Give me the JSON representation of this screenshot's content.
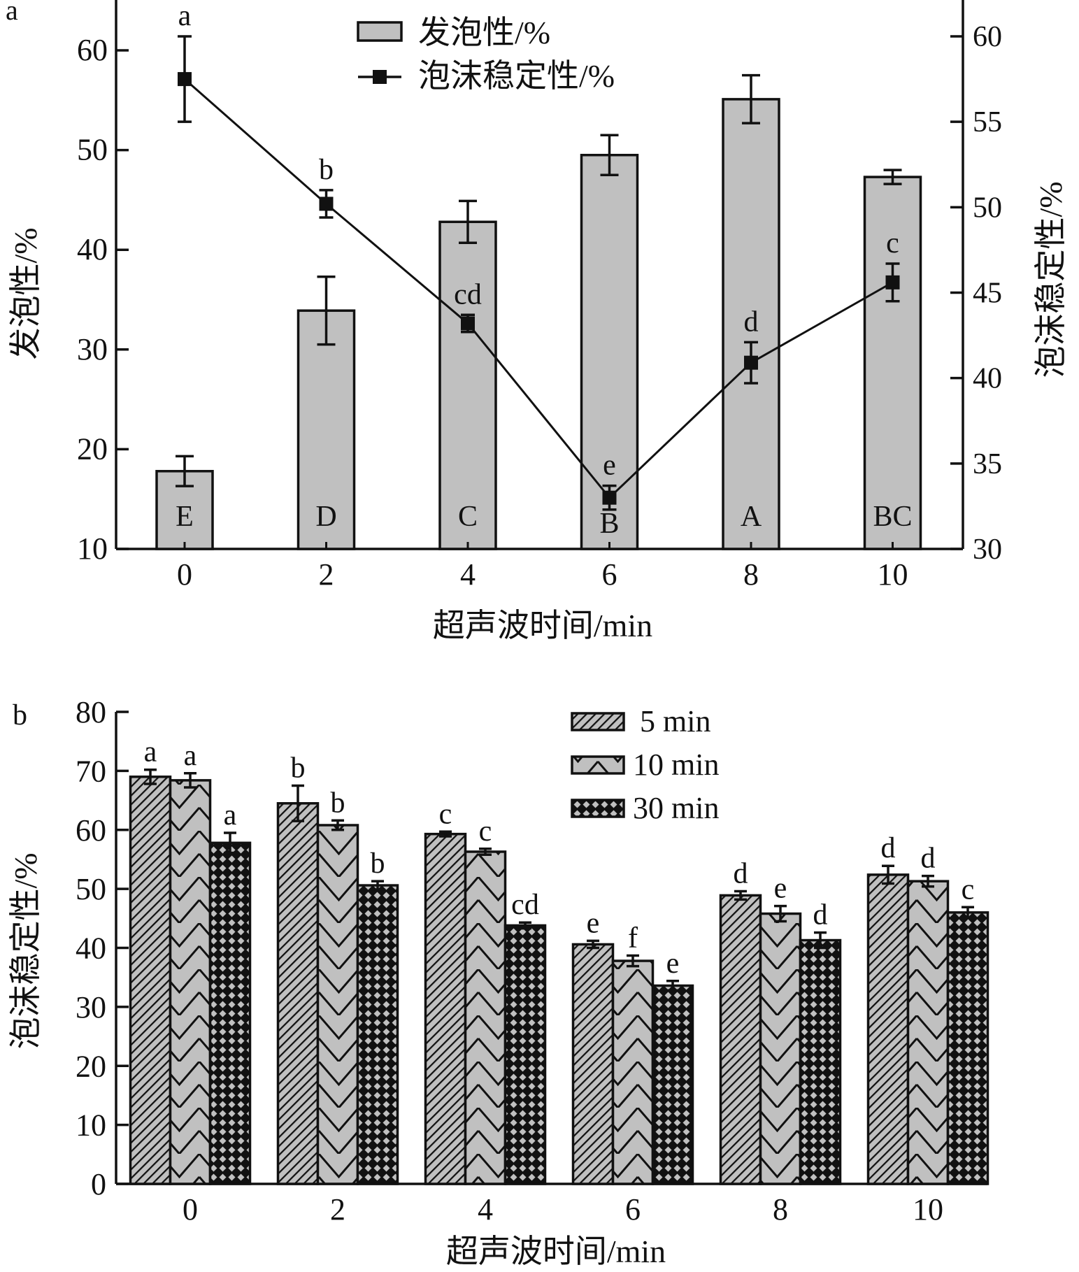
{
  "chart_data": [
    {
      "panel": "a",
      "type": "bar",
      "title": "",
      "xlabel": "超声波时间/min",
      "ylabel": "发泡性/%",
      "y2label": "泡沫稳定性/%",
      "categories": [
        "0",
        "2",
        "4",
        "6",
        "8",
        "10"
      ],
      "ylim": [
        10,
        65
      ],
      "yticks": [
        10,
        20,
        30,
        40,
        50,
        60
      ],
      "y2lim": [
        30,
        62
      ],
      "y2ticks": [
        30,
        35,
        40,
        45,
        50,
        55,
        60
      ],
      "legend_position": "top-center",
      "grid": false,
      "series": [
        {
          "name": "发泡性/%",
          "kind": "bar",
          "axis": "left",
          "color": "#c0c0c0",
          "values": [
            17.8,
            33.9,
            42.8,
            49.5,
            55.1,
            47.3
          ],
          "errors": [
            1.5,
            3.4,
            2.1,
            2.0,
            2.4,
            0.7
          ],
          "significance": [
            "E",
            "D",
            "C",
            "B",
            "A",
            "BC"
          ]
        },
        {
          "name": "泡沫稳定性/%",
          "kind": "line",
          "axis": "right",
          "color": "#000000",
          "marker": "square",
          "values": [
            57.5,
            50.2,
            43.2,
            33.0,
            40.9,
            45.6
          ],
          "errors": [
            2.5,
            0.8,
            0.5,
            0.7,
            1.2,
            1.1
          ],
          "significance": [
            "a",
            "b",
            "cd",
            "e",
            "d",
            "c"
          ]
        }
      ]
    },
    {
      "panel": "b",
      "type": "bar",
      "title": "",
      "xlabel": "超声波时间/min",
      "ylabel": "泡沫稳定性/%",
      "categories": [
        "0",
        "2",
        "4",
        "6",
        "8",
        "10"
      ],
      "ylim": [
        0,
        80
      ],
      "yticks": [
        0,
        10,
        20,
        30,
        40,
        50,
        60,
        70,
        80
      ],
      "legend_position": "top-center",
      "grid": false,
      "series": [
        {
          "name": "5 min",
          "pattern": "diagonal-hatch",
          "values": [
            69.0,
            64.5,
            59.3,
            40.6,
            48.9,
            52.4
          ],
          "errors": [
            1.2,
            3.0,
            0.4,
            0.6,
            0.7,
            1.5
          ],
          "significance": [
            "a",
            "b",
            "c",
            "e",
            "d",
            "d"
          ]
        },
        {
          "name": "10 min",
          "pattern": "zigzag",
          "values": [
            68.4,
            60.8,
            56.3,
            37.8,
            45.8,
            51.3
          ],
          "errors": [
            1.2,
            0.8,
            0.5,
            0.9,
            1.3,
            0.9
          ],
          "significance": [
            "a",
            "b",
            "c",
            "f",
            "e",
            "d"
          ]
        },
        {
          "name": "30 min",
          "pattern": "crosshatch-diamond",
          "values": [
            57.8,
            50.6,
            43.8,
            33.6,
            41.3,
            46.0
          ],
          "errors": [
            1.7,
            0.7,
            0.5,
            0.8,
            1.3,
            0.9
          ],
          "significance": [
            "a",
            "b",
            "cd",
            "e",
            "d",
            "c"
          ]
        }
      ]
    }
  ],
  "panel_labels": {
    "a": "a",
    "b": "b"
  }
}
